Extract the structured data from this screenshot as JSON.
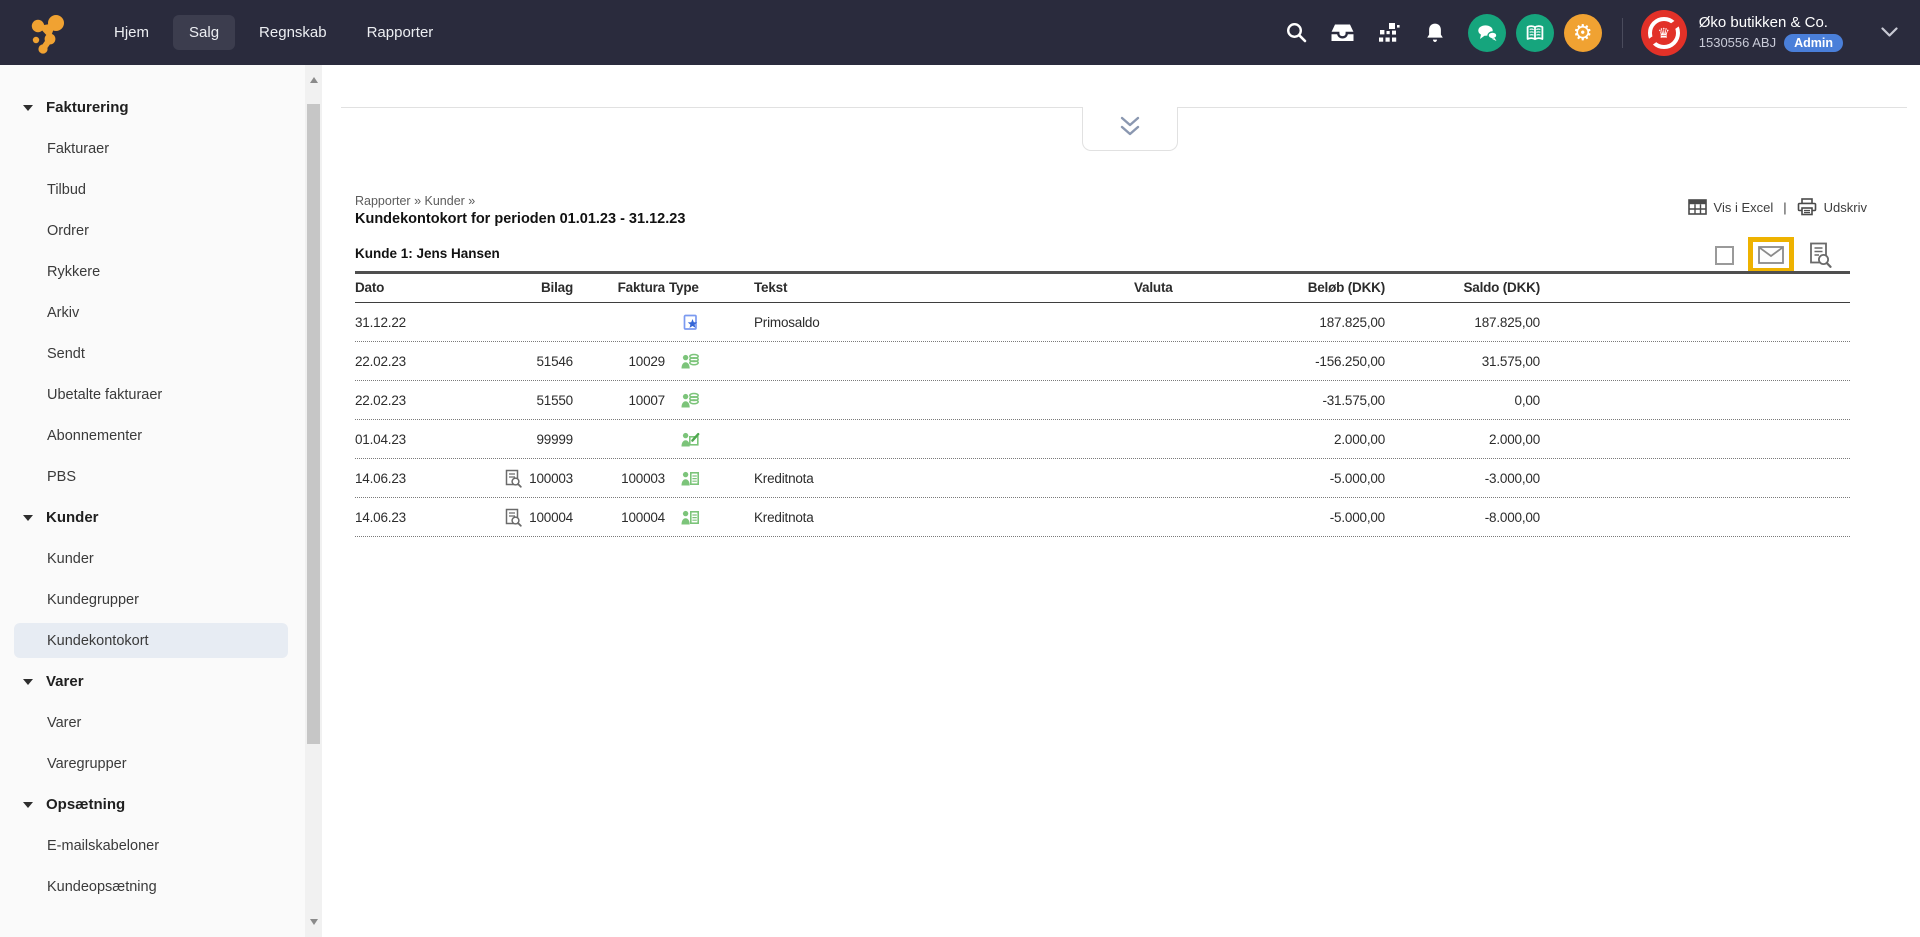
{
  "navbar": {
    "nav_items": [
      {
        "label": "Hjem",
        "active": false
      },
      {
        "label": "Salg",
        "active": true
      },
      {
        "label": "Regnskab",
        "active": false
      },
      {
        "label": "Rapporter",
        "active": false
      }
    ],
    "action_icons": [
      {
        "name": "search-icon"
      },
      {
        "name": "inbox-icon"
      },
      {
        "name": "app-switcher-icon"
      },
      {
        "name": "notifications-bell-icon"
      }
    ],
    "bubble_icons": [
      {
        "name": "support-chat-icon",
        "bg": "#16a57d"
      },
      {
        "name": "help-book-icon",
        "bg": "#16a57d"
      },
      {
        "name": "settings-gear-icon",
        "bg": "#f0a232"
      }
    ],
    "account": {
      "company_name": "Øko butikken & Co.",
      "agreement_number": "1530556 ABJ",
      "role_badge": "Admin"
    }
  },
  "sidebar": {
    "items": [
      {
        "label": "Fakturering",
        "type": "section"
      },
      {
        "label": "Fakturaer",
        "type": "item"
      },
      {
        "label": "Tilbud",
        "type": "item"
      },
      {
        "label": "Ordrer",
        "type": "item"
      },
      {
        "label": "Rykkere",
        "type": "item"
      },
      {
        "label": "Arkiv",
        "type": "item"
      },
      {
        "label": "Sendt",
        "type": "item"
      },
      {
        "label": "Ubetalte fakturaer",
        "type": "item"
      },
      {
        "label": "Abonnementer",
        "type": "item"
      },
      {
        "label": "PBS",
        "type": "item"
      },
      {
        "label": "Kunder",
        "type": "section"
      },
      {
        "label": "Kunder",
        "type": "item"
      },
      {
        "label": "Kundegrupper",
        "type": "item"
      },
      {
        "label": "Kundekontokort",
        "type": "item",
        "selected": true
      },
      {
        "label": "Varer",
        "type": "section"
      },
      {
        "label": "Varer",
        "type": "item"
      },
      {
        "label": "Varegrupper",
        "type": "item"
      },
      {
        "label": "Opsætning",
        "type": "section"
      },
      {
        "label": "E-mailskabeloner",
        "type": "item"
      },
      {
        "label": "Kundeopsætning",
        "type": "item"
      }
    ]
  },
  "main": {
    "breadcrumb": {
      "parts": [
        "Rapporter",
        "Kunder"
      ],
      "separator": "»"
    },
    "title": "Kundekontokort for perioden 01.01.23 - 31.12.23",
    "customer_heading": "Kunde 1: Jens Hansen",
    "toolbar": {
      "excel_label": "Vis i Excel",
      "separator": "|",
      "print_label": "Udskriv"
    },
    "view_icons": [
      {
        "name": "checkbox-icon",
        "highlighted": false
      },
      {
        "name": "email-report-icon",
        "highlighted": true
      },
      {
        "name": "report-preview-icon",
        "highlighted": false
      }
    ],
    "table": {
      "columns": [
        {
          "label": "Dato",
          "align": "left"
        },
        {
          "label": "Bilag",
          "align": "right"
        },
        {
          "label": "Faktura",
          "align": "right"
        },
        {
          "label": "Type",
          "align": "left"
        },
        {
          "label": "Tekst",
          "align": "left"
        },
        {
          "label": "Valuta",
          "align": "left"
        },
        {
          "label": "Beløb (DKK)",
          "align": "right"
        },
        {
          "label": "Saldo (DKK)",
          "align": "right"
        }
      ],
      "rows": [
        {
          "dato": "31.12.22",
          "bilag": "",
          "bilag_attachment": false,
          "faktura": "",
          "type_icon": "opening-balance-icon",
          "tekst": "Primosaldo",
          "valuta": "",
          "belob": "187.825,00",
          "saldo": "187.825,00"
        },
        {
          "dato": "22.02.23",
          "bilag": "51546",
          "bilag_attachment": false,
          "faktura": "10029",
          "type_icon": "customer-payment-icon",
          "tekst": "",
          "valuta": "",
          "belob": "-156.250,00",
          "saldo": "31.575,00"
        },
        {
          "dato": "22.02.23",
          "bilag": "51550",
          "bilag_attachment": false,
          "faktura": "10007",
          "type_icon": "customer-payment-icon",
          "tekst": "",
          "valuta": "",
          "belob": "-31.575,00",
          "saldo": "0,00"
        },
        {
          "dato": "01.04.23",
          "bilag": "99999",
          "bilag_attachment": false,
          "faktura": "",
          "type_icon": "manual-entry-icon",
          "tekst": "",
          "valuta": "",
          "belob": "2.000,00",
          "saldo": "2.000,00"
        },
        {
          "dato": "14.06.23",
          "bilag": "100003",
          "bilag_attachment": true,
          "faktura": "100003",
          "type_icon": "invoice-icon",
          "tekst": "Kreditnota",
          "valuta": "",
          "belob": "-5.000,00",
          "saldo": "-3.000,00"
        },
        {
          "dato": "14.06.23",
          "bilag": "100004",
          "bilag_attachment": true,
          "faktura": "100004",
          "type_icon": "invoice-icon",
          "tekst": "Kreditnota",
          "valuta": "",
          "belob": "-5.000,00",
          "saldo": "-8.000,00"
        }
      ]
    }
  },
  "colors": {
    "navbar_bg": "#2a2b3d",
    "navbar_active_bg": "#3c3d4e",
    "brand_orange": "#f0a232",
    "bubble_green": "#16a57d",
    "badge_blue": "#4a7fd9",
    "avatar_red": "#e23128",
    "highlight_yellow": "#eeb200",
    "selected_item_bg": "#e7ecf3",
    "type_icon_green": "#7cc47a",
    "type_icon_blue": "#3566d6"
  }
}
